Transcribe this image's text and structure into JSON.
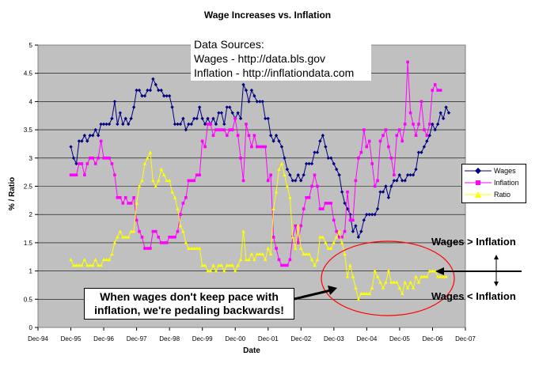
{
  "chart_data": {
    "type": "line",
    "title": "Wage Increases vs. Inflation",
    "xlabel": "Date",
    "ylabel": "% / Ratio",
    "ylim": [
      0,
      5
    ],
    "yticks": [
      "0",
      "0.5",
      "1",
      "1.5",
      "2",
      "2.5",
      "3",
      "3.5",
      "4",
      "4.5",
      "5"
    ],
    "xticks": [
      "Dec-94",
      "Dec-95",
      "Dec-96",
      "Dec-97",
      "Dec-98",
      "Dec-99",
      "Dec-00",
      "Dec-01",
      "Dec-02",
      "Dec-03",
      "Dec-04",
      "Dec-05",
      "Dec-06",
      "Dec-07"
    ],
    "x_start_year": 1995.92,
    "x_step_years": 0.0833,
    "grid": true,
    "legend_position": "right",
    "series": [
      {
        "name": "Wages",
        "color": "#000080",
        "marker": "diamond",
        "values": [
          3.2,
          3.0,
          2.9,
          3.3,
          3.3,
          3.4,
          3.3,
          3.4,
          3.4,
          3.5,
          3.4,
          3.6,
          3.6,
          3.6,
          3.6,
          3.7,
          4.0,
          3.6,
          3.8,
          3.6,
          3.7,
          3.6,
          3.7,
          3.9,
          4.2,
          4.2,
          4.1,
          4.1,
          4.2,
          4.2,
          4.4,
          4.3,
          4.2,
          4.2,
          4.1,
          4.1,
          4.1,
          3.9,
          3.6,
          3.6,
          3.6,
          3.7,
          3.5,
          3.6,
          3.6,
          3.7,
          3.7,
          3.9,
          3.7,
          3.6,
          3.7,
          3.6,
          3.7,
          3.6,
          3.8,
          3.8,
          3.6,
          3.9,
          3.9,
          3.8,
          3.7,
          3.8,
          3.7,
          4.3,
          4.2,
          4.0,
          4.2,
          4.1,
          4.0,
          4.0,
          4.0,
          3.7,
          3.7,
          3.4,
          3.3,
          3.4,
          3.3,
          3.2,
          3.0,
          2.8,
          2.7,
          2.6,
          2.6,
          2.7,
          2.6,
          2.7,
          2.9,
          2.9,
          2.9,
          3.1,
          3.1,
          3.3,
          3.4,
          3.2,
          3.0,
          3.0,
          2.9,
          2.8,
          2.7,
          2.4,
          2.2,
          2.1,
          2.0,
          1.7,
          1.8,
          1.6,
          1.7,
          1.9,
          2.0,
          2.0,
          2.0,
          2.0,
          2.1,
          2.4,
          2.4,
          2.5,
          2.3,
          2.5,
          2.6,
          2.6,
          2.7,
          2.6,
          2.6,
          2.7,
          2.7,
          2.7,
          2.8,
          3.1,
          3.1,
          3.2,
          3.3,
          3.4,
          3.6,
          3.5,
          3.6,
          3.8,
          3.7,
          3.9,
          3.8
        ]
      },
      {
        "name": "Inflation",
        "color": "#ff00ff",
        "marker": "square",
        "values": [
          2.7,
          2.7,
          2.7,
          2.9,
          2.9,
          2.7,
          2.9,
          3.0,
          3.0,
          2.9,
          3.0,
          3.3,
          3.0,
          3.0,
          3.0,
          2.9,
          2.7,
          2.3,
          2.3,
          2.2,
          2.3,
          2.2,
          2.2,
          2.3,
          1.9,
          1.7,
          1.6,
          1.4,
          1.4,
          1.4,
          1.7,
          1.7,
          1.6,
          1.5,
          1.5,
          1.5,
          1.6,
          1.6,
          1.6,
          1.7,
          2.0,
          2.2,
          2.3,
          2.6,
          2.6,
          2.6,
          2.7,
          2.7,
          3.3,
          3.2,
          3.6,
          3.6,
          3.4,
          3.5,
          3.5,
          3.5,
          3.5,
          3.4,
          3.5,
          3.5,
          3.7,
          3.4,
          3.0,
          2.6,
          3.6,
          3.4,
          3.2,
          3.4,
          3.2,
          3.2,
          3.2,
          3.2,
          2.6,
          2.7,
          1.6,
          1.4,
          1.2,
          1.1,
          1.1,
          1.1,
          1.2,
          1.6,
          1.8,
          1.5,
          1.8,
          2.1,
          2.3,
          2.3,
          2.5,
          2.7,
          2.5,
          2.1,
          2.1,
          2.2,
          2.2,
          2.2,
          1.9,
          1.7,
          1.6,
          1.6,
          1.7,
          2.4,
          1.9,
          1.9,
          2.6,
          3.0,
          3.1,
          3.5,
          3.2,
          3.3,
          2.9,
          2.5,
          2.6,
          3.3,
          3.4,
          3.5,
          3.2,
          3.0,
          2.7,
          3.4,
          3.5,
          3.3,
          3.6,
          4.7,
          3.8,
          3.6,
          3.4,
          3.6,
          4.0,
          3.5,
          3.4,
          3.6,
          4.2,
          4.3,
          4.2,
          4.2
        ]
      },
      {
        "name": "Ratio",
        "color": "#ffff00",
        "marker": "triangle",
        "values": [
          1.2,
          1.1,
          1.1,
          1.1,
          1.1,
          1.2,
          1.1,
          1.1,
          1.1,
          1.2,
          1.1,
          1.1,
          1.2,
          1.2,
          1.2,
          1.3,
          1.5,
          1.6,
          1.7,
          1.6,
          1.6,
          1.6,
          1.7,
          1.7,
          2.2,
          2.5,
          2.6,
          2.9,
          3.0,
          3.1,
          2.6,
          2.5,
          2.6,
          2.8,
          2.7,
          2.6,
          2.6,
          2.4,
          2.3,
          2.1,
          1.8,
          1.7,
          1.5,
          1.4,
          1.4,
          1.4,
          1.4,
          1.4,
          1.1,
          1.1,
          1.0,
          1.0,
          1.1,
          1.0,
          1.1,
          1.1,
          1.0,
          1.1,
          1.1,
          1.1,
          1.0,
          1.1,
          1.2,
          1.7,
          1.2,
          1.2,
          1.3,
          1.2,
          1.3,
          1.3,
          1.3,
          1.2,
          1.4,
          1.3,
          2.1,
          2.4,
          2.8,
          2.9,
          2.7,
          2.5,
          2.3,
          1.6,
          1.4,
          1.8,
          1.4,
          1.3,
          1.3,
          1.3,
          1.2,
          1.1,
          1.2,
          1.6,
          1.6,
          1.5,
          1.4,
          1.4,
          1.5,
          1.6,
          1.7,
          1.5,
          1.3,
          0.9,
          1.1,
          0.9,
          0.7,
          0.5,
          0.6,
          0.6,
          0.6,
          0.6,
          0.7,
          1.0,
          0.9,
          0.8,
          0.7,
          0.8,
          1.0,
          0.8,
          0.8,
          0.8,
          0.7,
          0.6,
          0.8,
          0.7,
          0.8,
          0.7,
          0.9,
          0.8,
          0.9,
          0.9,
          0.9,
          1.0,
          1.0,
          1.0,
          0.9,
          0.9,
          0.9,
          0.9
        ]
      }
    ]
  },
  "sources": {
    "heading": "Data Sources:",
    "wages": "Wages - http://data.bls.gov",
    "inflation": "Inflation - http://inflationdata.com"
  },
  "callout": {
    "line1": "When wages don't keep pace with",
    "line2": "inflation, we're pedaling backwards!"
  },
  "labels": {
    "above": "Wages > Inflation",
    "below": "Wages < Inflation"
  },
  "colors": {
    "plot_background": "#c0c0c0",
    "ellipse": "#ff0000"
  }
}
